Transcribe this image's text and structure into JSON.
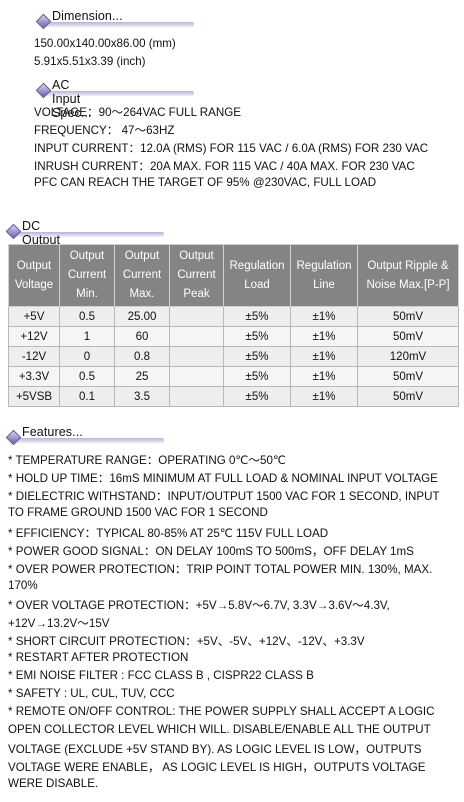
{
  "dimension": {
    "heading": "Dimension...",
    "lines": [
      "150.00x140.00x86.00  (mm)",
      "5.91x5.51x3.39  (inch)"
    ]
  },
  "ac_input": {
    "heading": "AC Input Spec...",
    "lines": [
      "VOLTAGE：90～264VAC FULL RANGE",
      "FREQUENCY：  47～63HZ",
      "INPUT CURRENT：12.0A (RMS) FOR 115 VAC / 6.0A (RMS) FOR 230 VAC",
      "INRUSH CURRENT：20A MAX. FOR 115 VAC / 40A MAX. FOR 230 VAC",
      "PFC CAN REACH THE TARGET OF 95% @230VAC, FULL LOAD"
    ]
  },
  "dc_output": {
    "heading": "DC Output Spec...",
    "headers": [
      [
        "Output",
        "Voltage"
      ],
      [
        "Output",
        "Current",
        "Min."
      ],
      [
        "Output",
        "Current",
        "Max."
      ],
      [
        "Output",
        "Current",
        "Peak"
      ],
      [
        "Regulation",
        "Load"
      ],
      [
        "Regulation",
        "Line"
      ],
      [
        "Output Ripple &",
        "Noise Max.[P-P]"
      ]
    ],
    "rows": [
      [
        "+5V",
        "0.5",
        "25.00",
        "",
        "±5%",
        "±1%",
        "50mV"
      ],
      [
        "+12V",
        "1",
        "60",
        "",
        "±5%",
        "±1%",
        "50mV"
      ],
      [
        "-12V",
        "0",
        "0.8",
        "",
        "±5%",
        "±1%",
        "120mV"
      ],
      [
        "+3.3V",
        "0.5",
        "25",
        "",
        "±5%",
        "±1%",
        "50mV"
      ],
      [
        "+5VSB",
        "0.1",
        "3.5",
        "",
        "±5%",
        "±1%",
        "50mV"
      ]
    ]
  },
  "features": {
    "heading": "Features...",
    "lines": [
      "* TEMPERATURE RANGE：OPERATING 0℃～50℃",
      "* HOLD UP TIME：16mS MINIMUM AT FULL LOAD & NOMINAL INPUT VOLTAGE",
      "* DIELECTRIC WITHSTAND：INPUT/OUTPUT 1500 VAC FOR 1 SECOND, INPUT",
      "TO FRAME GROUND 1500 VAC FOR 1 SECOND",
      "* EFFICIENCY：TYPICAL 80-85% AT 25℃ 115V FULL LOAD",
      "* POWER GOOD SIGNAL：ON DELAY 100mS TO 500mS，OFF DELAY 1mS",
      "* OVER POWER PROTECTION：TRIP POINT TOTAL POWER MIN. 130%, MAX.",
      "170%",
      "* OVER VOLTAGE PROTECTION：+5V→5.8V～6.7V, 3.3V→3.6V～4.3V,",
      "+12V→13.2V～15V",
      "* SHORT CIRCUIT PROTECTION：+5V、-5V、+12V、-12V、+3.3V",
      "* RESTART AFTER PROTECTION",
      "* EMI NOISE FILTER : FCC CLASS B , CISPR22 CLASS B",
      "* SAFETY : UL, CUL, TUV, CCC",
      "* REMOTE ON/OFF CONTROL: THE POWER SUPPLY SHALL ACCEPT A LOGIC",
      "OPEN COLLECTOR LEVEL WHICH WILL. DISABLE/ENABLE ALL THE OUTPUT",
      "VOLTAGE (EXCLUDE +5V STAND BY). AS LOGIC LEVEL IS LOW，OUTPUTS",
      "VOLTAGE WERE ENABLE，  AS LOGIC LEVEL IS HIGH，OUTPUTS VOLTAGE",
      "WERE DISABLE."
    ]
  }
}
